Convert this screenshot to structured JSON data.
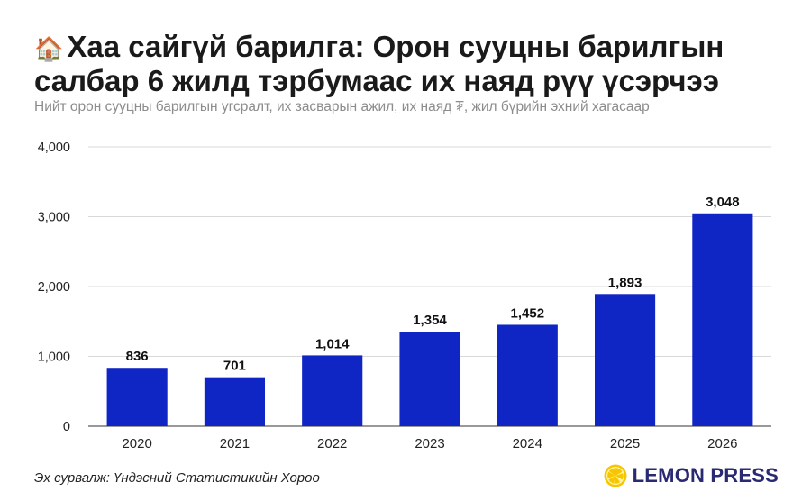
{
  "header": {
    "title_icon": "🏠",
    "title": "Хаа сайгүй барилга: Орон сууцны барилгын салбар 6 жилд тэрбумаас их наяд рүү үсэрчээ",
    "subtitle": "Нийт орон сууцны барилгын угсралт, их засварын ажил, их наяд ₮, жил бүрийн эхний хагасаар"
  },
  "footer": {
    "source": "Эх сурвалж: Үндэсний Статистикийн Хороо",
    "logo_text": "LEMON PRESS",
    "logo_icon": "lemon-slice-icon"
  },
  "colors": {
    "bar": "#1026c4",
    "grid": "#d9d9d9",
    "logo_lemon": "#f7c600",
    "logo_text": "#2a2a73"
  },
  "chart_data": {
    "type": "bar",
    "categories": [
      "2020",
      "2021",
      "2022",
      "2023",
      "2024",
      "2025",
      "2026"
    ],
    "values": [
      836,
      701,
      1014,
      1354,
      1452,
      1893,
      3048
    ],
    "value_labels": [
      "836",
      "701",
      "1,014",
      "1,354",
      "1,452",
      "1,893",
      "3,048"
    ],
    "yticks": [
      0,
      1000,
      2000,
      3000,
      4000
    ],
    "ytick_labels": [
      "0",
      "1,000",
      "2,000",
      "3,000",
      "4,000"
    ],
    "ylim": [
      0,
      4000
    ],
    "grid": true,
    "xlabel": "",
    "ylabel": ""
  }
}
